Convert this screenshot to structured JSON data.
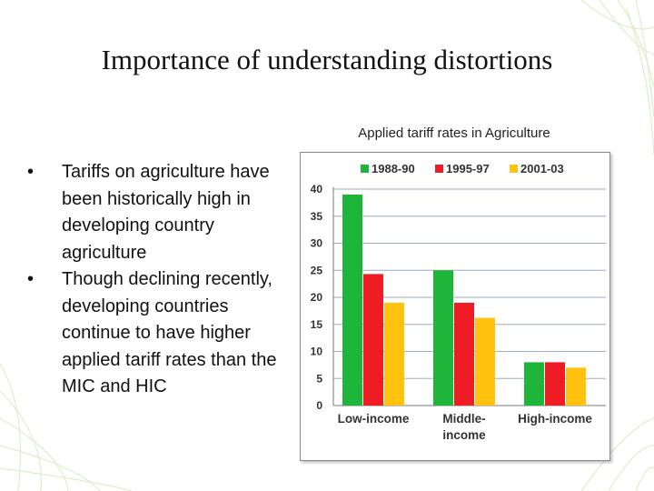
{
  "slide": {
    "title": "Importance of understanding distortions",
    "bullets": [
      "Tariffs on agriculture have been historically high in developing country agriculture",
      "Though declining recently, developing countries continue to have higher applied tariff rates than the MIC and HIC"
    ],
    "bullet_glyph": "•"
  },
  "chart_data": {
    "type": "bar",
    "title": "Applied tariff rates in Agriculture",
    "xlabel": "",
    "ylabel": "",
    "ylim": [
      0,
      40
    ],
    "yticks": [
      0,
      5,
      10,
      15,
      20,
      25,
      30,
      35,
      40
    ],
    "grid": true,
    "legend_position": "top",
    "categories": [
      [
        "Low-income"
      ],
      [
        "Middle-",
        "income"
      ],
      [
        "High-income"
      ]
    ],
    "series": [
      {
        "name": "1988-90",
        "color": "#1eb53a",
        "values": [
          39,
          25,
          8
        ]
      },
      {
        "name": "1995-97",
        "color": "#ee1c25",
        "values": [
          24.3,
          19,
          8
        ]
      },
      {
        "name": "2001-03",
        "color": "#ffc20e",
        "values": [
          19,
          16.2,
          7
        ]
      }
    ]
  },
  "colors": {
    "grid": "#9aaec6",
    "axis": "#7a7a7a",
    "decor_green": "#cde8b4"
  }
}
